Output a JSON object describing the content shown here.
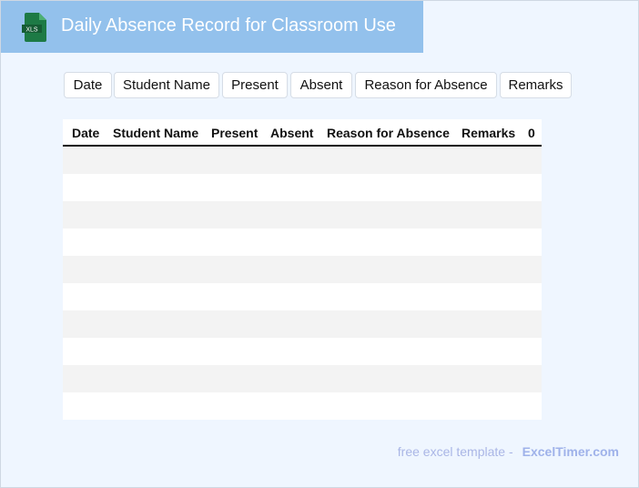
{
  "header": {
    "title": "Daily Absence Record for Classroom Use",
    "logo_text": "XLS",
    "logo_icon": "excel-file-icon"
  },
  "buttons": [
    "Date",
    "Student Name",
    "Present",
    "Absent",
    "Reason for Absence",
    "Remarks"
  ],
  "table": {
    "columns": [
      "Date",
      "Student Name",
      "Present",
      "Absent",
      "Reason for Absence",
      "Remarks",
      "0"
    ],
    "row_count": 10
  },
  "footer": {
    "text": "free excel template -",
    "link": "ExcelTimer.com"
  },
  "colors": {
    "header_bg": "#93c1ec",
    "page_bg": "#eff6ff",
    "logo_green": "#1d7a45",
    "row_alt": "#f3f3f3"
  }
}
